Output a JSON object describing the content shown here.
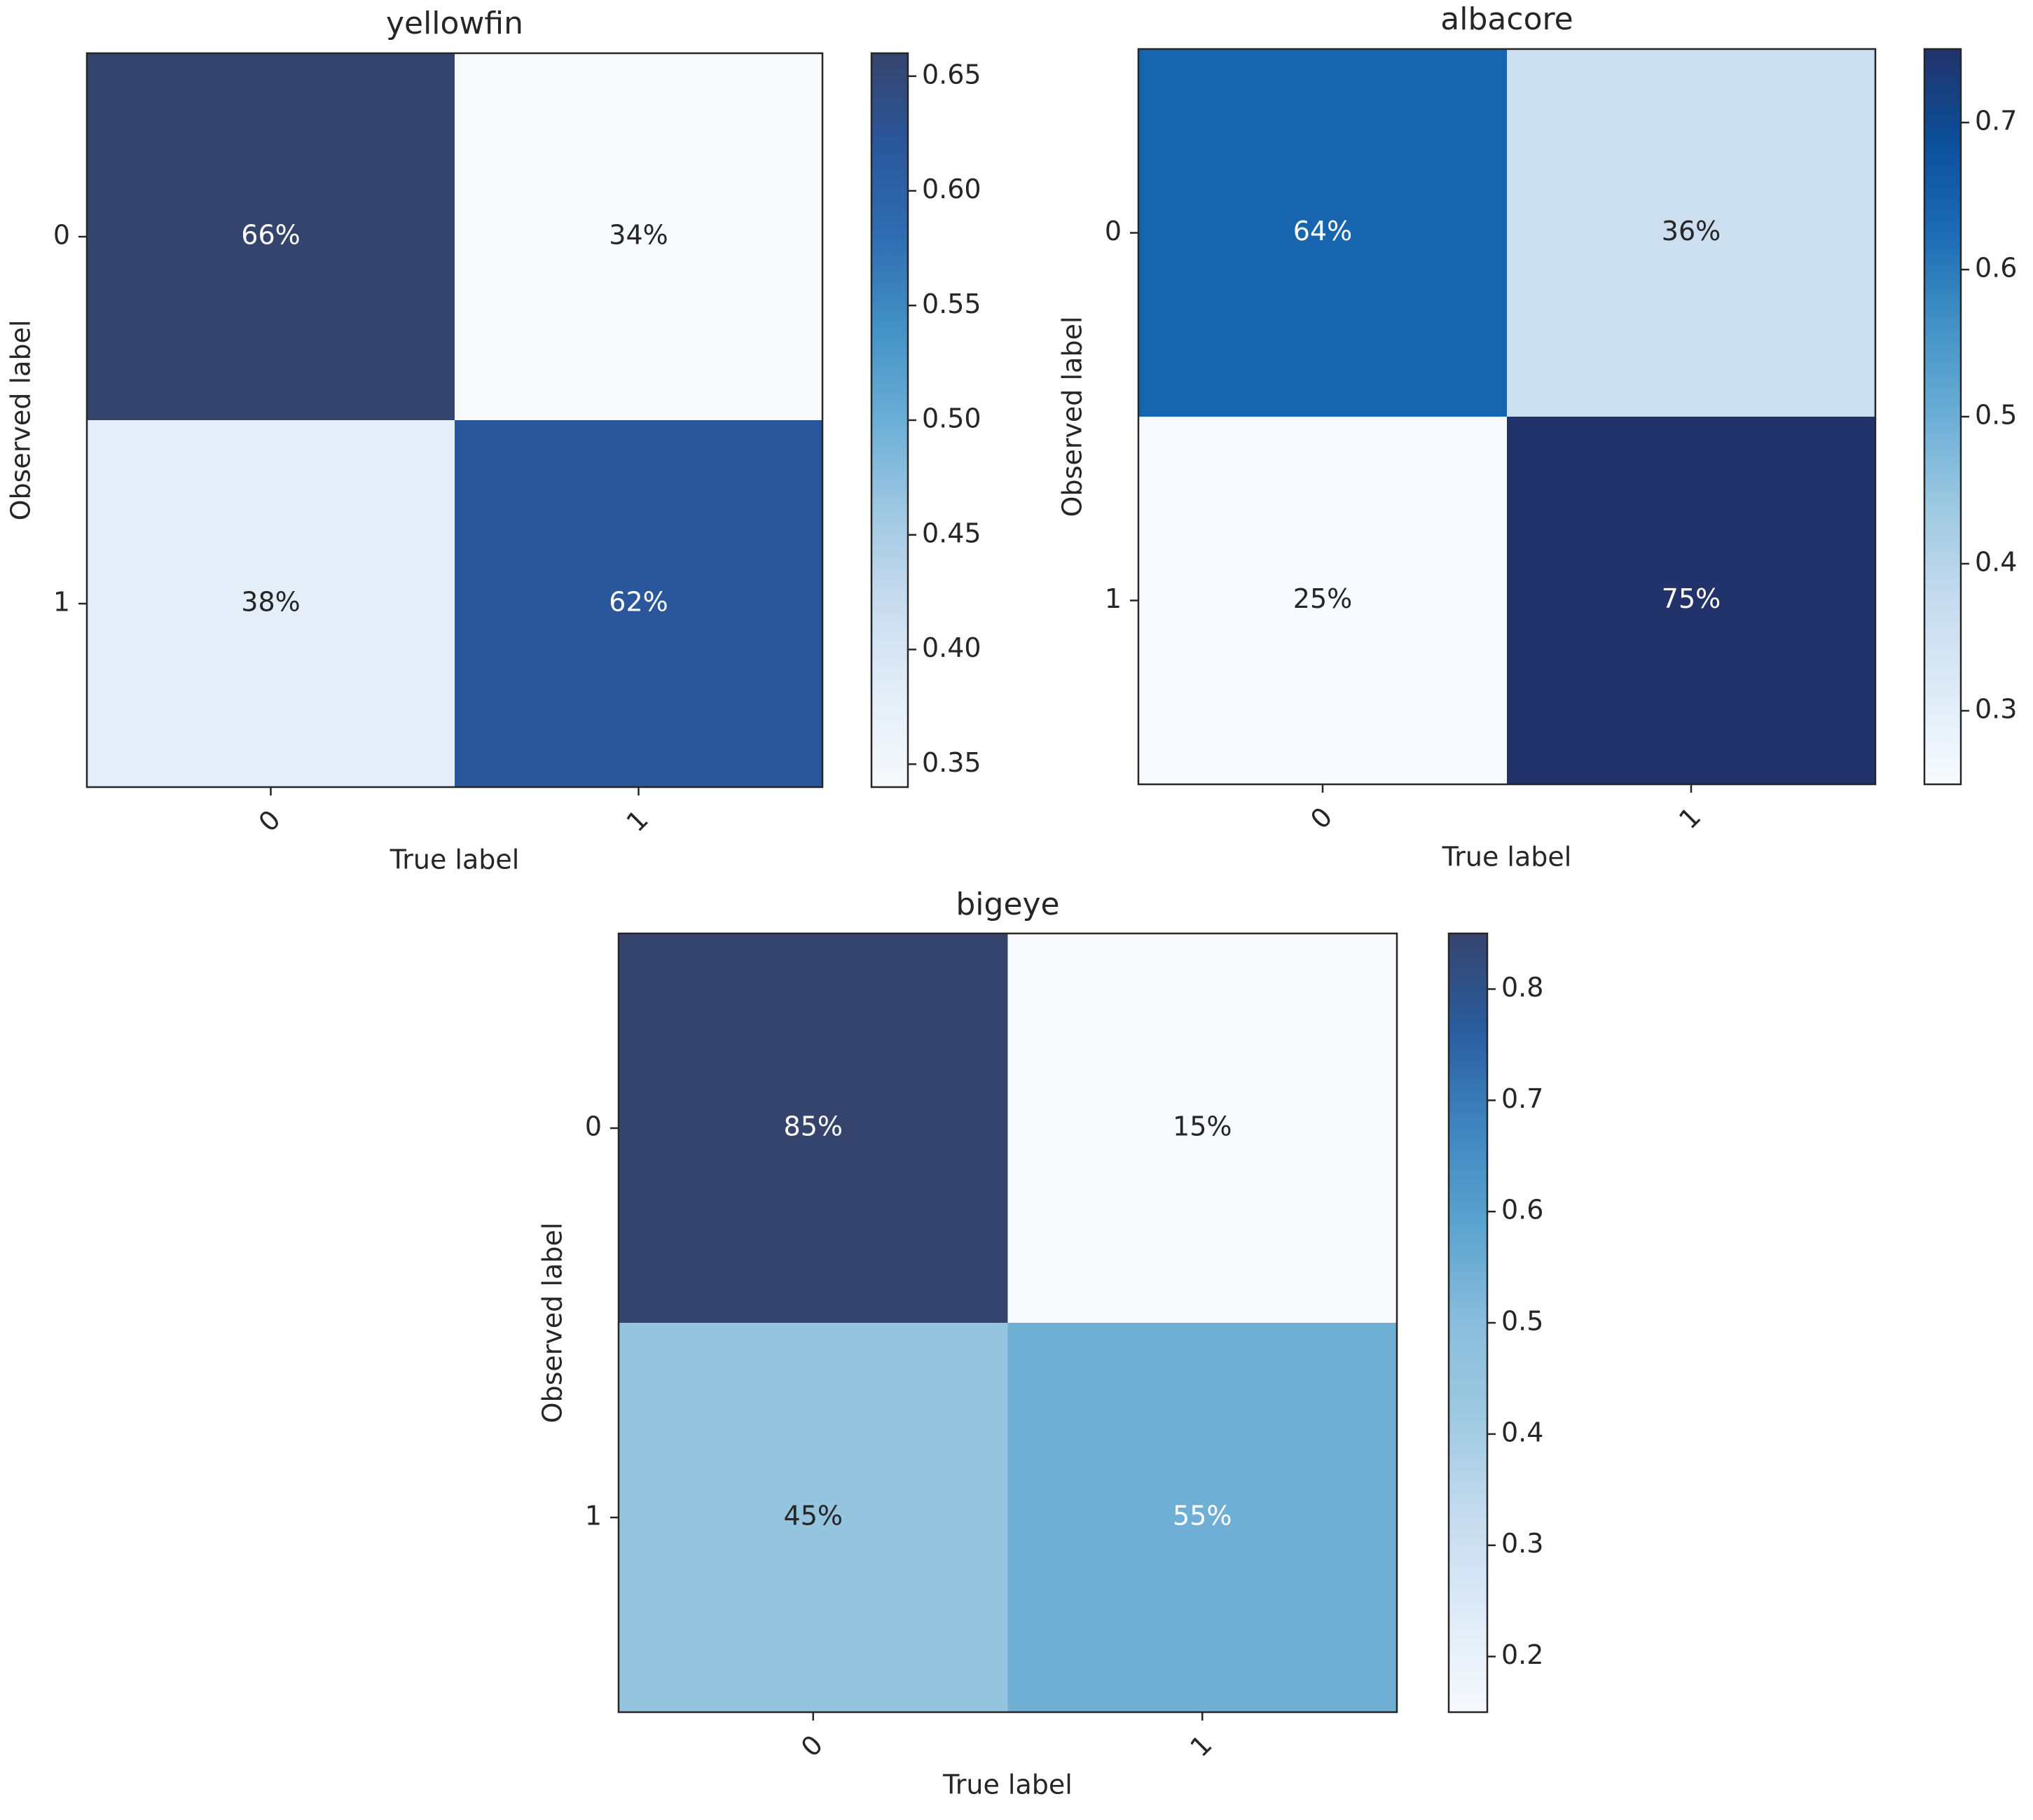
{
  "chart_data": [
    {
      "type": "heatmap",
      "title": "yellowfin",
      "xlabel": "True label",
      "ylabel": "Observed label",
      "x_categories": [
        "0",
        "1"
      ],
      "y_categories": [
        "0",
        "1"
      ],
      "values": [
        [
          0.66,
          0.34
        ],
        [
          0.38,
          0.62
        ]
      ],
      "value_labels": [
        [
          "66%",
          "34%"
        ],
        [
          "38%",
          "62%"
        ]
      ],
      "clim": [
        0.34,
        0.66
      ],
      "cticks": [
        0.35,
        {
          "value": 0.4,
          "label": "0.40"
        },
        0.45,
        {
          "value": 0.5,
          "label": "0.50"
        },
        0.55,
        {
          "value": 0.6,
          "label": "0.60"
        },
        0.65
      ],
      "colormap": [
        "#f7f9fc",
        "#e3eef8",
        "#c9dcef",
        "#9fc8e2",
        "#6aaed6",
        "#4292c6",
        "#2f6db2",
        "#2a579c",
        "#35446c"
      ]
    },
    {
      "type": "heatmap",
      "title": "albacore",
      "xlabel": "True label",
      "ylabel": "Observed label",
      "x_categories": [
        "0",
        "1"
      ],
      "y_categories": [
        "0",
        "1"
      ],
      "values": [
        [
          0.64,
          0.36
        ],
        [
          0.25,
          0.75
        ]
      ],
      "value_labels": [
        [
          "64%",
          "36%"
        ],
        [
          "25%",
          "75%"
        ]
      ],
      "clim": [
        0.25,
        0.75
      ],
      "cticks": [
        0.3,
        0.4,
        0.5,
        0.6,
        0.7
      ],
      "colormap": [
        "#f7fbff",
        "#deebf7",
        "#c6dbef",
        "#9ecae1",
        "#6baed6",
        "#4292c6",
        "#1b6cb5",
        "#0b4f9a",
        "#21336a"
      ]
    },
    {
      "type": "heatmap",
      "title": "bigeye",
      "xlabel": "True label",
      "ylabel": "Observed label",
      "x_categories": [
        "0",
        "1"
      ],
      "y_categories": [
        "0",
        "1"
      ],
      "values": [
        [
          0.85,
          0.15
        ],
        [
          0.45,
          0.55
        ]
      ],
      "value_labels": [
        [
          "85%",
          "15%"
        ],
        [
          "45%",
          "55%"
        ]
      ],
      "clim": [
        0.15,
        0.85
      ],
      "cticks": [
        0.2,
        0.3,
        0.4,
        0.5,
        0.6,
        0.7,
        0.8
      ],
      "colormap": [
        "#f7f9fc",
        "#deebf7",
        "#c6dbef",
        "#9ecae1",
        "#8abddc",
        "#5ba3cf",
        "#3f86c0",
        "#2a5da0",
        "#35446c"
      ]
    }
  ]
}
